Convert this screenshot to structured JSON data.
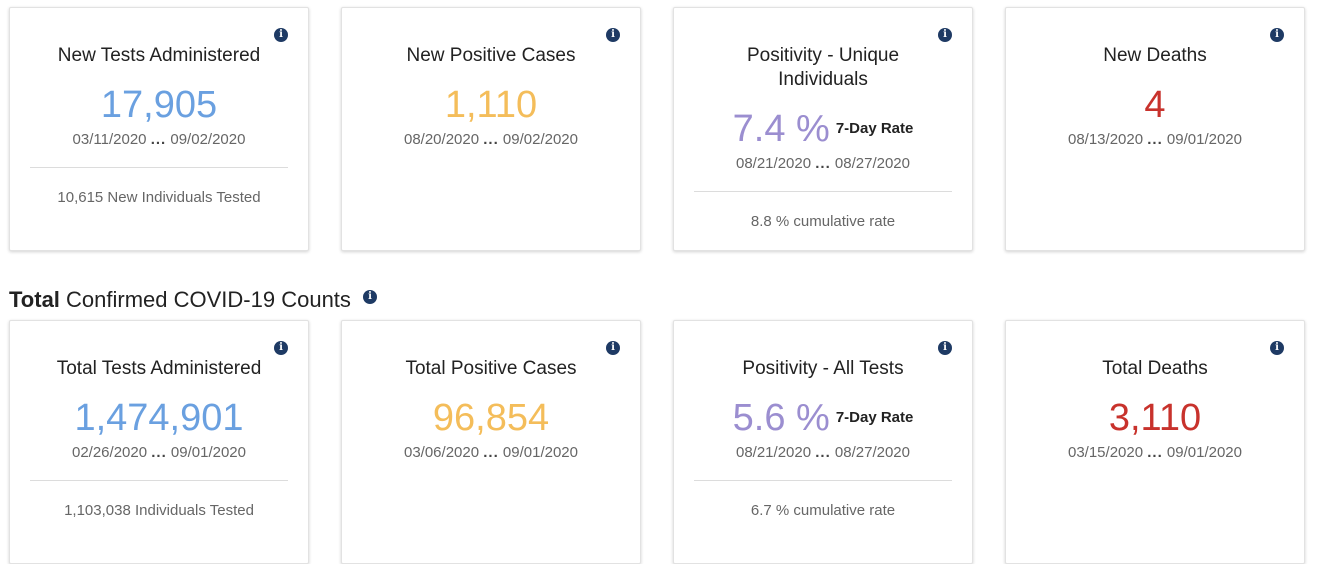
{
  "info_glyph": "i",
  "daily": {
    "tests": {
      "title": "New Tests Administered",
      "value": "17,905",
      "date_start": "03/11/2020",
      "date_sep": "...",
      "date_end": "09/02/2020",
      "footer": "10,615 New Individuals Tested"
    },
    "positive": {
      "title": "New Positive Cases",
      "value": "1,110",
      "date_start": "08/20/2020",
      "date_sep": "...",
      "date_end": "09/02/2020"
    },
    "positivity": {
      "title": "Positivity - Unique Individuals",
      "value": "7.4 %",
      "rate_label": "7-Day Rate",
      "date_start": "08/21/2020",
      "date_sep": "...",
      "date_end": "08/27/2020",
      "footer": "8.8 % cumulative rate"
    },
    "deaths": {
      "title": "New Deaths",
      "value": "4",
      "date_start": "08/13/2020",
      "date_sep": "...",
      "date_end": "09/01/2020"
    }
  },
  "section": {
    "title_bold": "Total",
    "title_rest": " Confirmed COVID-19 Counts"
  },
  "totals": {
    "tests": {
      "title": "Total Tests Administered",
      "value": "1,474,901",
      "date_start": "02/26/2020",
      "date_sep": "...",
      "date_end": "09/01/2020",
      "footer": "1,103,038 Individuals Tested"
    },
    "positive": {
      "title": "Total Positive Cases",
      "value": "96,854",
      "date_start": "03/06/2020",
      "date_sep": "...",
      "date_end": "09/01/2020"
    },
    "positivity": {
      "title": "Positivity - All Tests",
      "value": "5.6 %",
      "rate_label": "7-Day Rate",
      "date_start": "08/21/2020",
      "date_sep": "...",
      "date_end": "08/27/2020",
      "footer": "6.7 % cumulative rate"
    },
    "deaths": {
      "title": "Total Deaths",
      "value": "3,110",
      "date_start": "03/15/2020",
      "date_sep": "...",
      "date_end": "09/01/2020"
    }
  },
  "colors": {
    "tests": "#6aa0e0",
    "positive": "#f4bd5a",
    "positivity": "#9b8ed0",
    "deaths": "#c8322c",
    "info_icon": "#1e3a64"
  }
}
